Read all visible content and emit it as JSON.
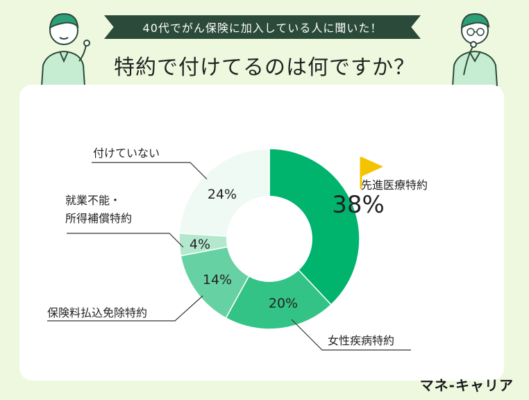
{
  "header": {
    "banner": "40代でがん保険に加入している人に聞いた！",
    "title": "特約で付けてるのは何ですか？"
  },
  "brand": "マネ-キャリア",
  "colors": {
    "background": "#eef8de",
    "banner": "#2b4a3a",
    "highlight_flag": "#f5c400"
  },
  "chart_data": {
    "type": "pie",
    "style": "donut",
    "unit": "%",
    "slices": [
      {
        "label": "先進医療特約",
        "value": 38,
        "display": "38%",
        "color": "#00b46e",
        "highlight": true
      },
      {
        "label": "女性疾病特約",
        "value": 20,
        "display": "20%",
        "color": "#33c386"
      },
      {
        "label": "保険料払込免除特約",
        "value": 14,
        "display": "14%",
        "color": "#66d1a2"
      },
      {
        "label": "就業不能・\n所得補償特約",
        "value": 4,
        "display": "4%",
        "color": "#b3e8cf"
      },
      {
        "label": "付けていない",
        "value": 24,
        "display": "24%",
        "color": "#eefaf3"
      }
    ]
  }
}
